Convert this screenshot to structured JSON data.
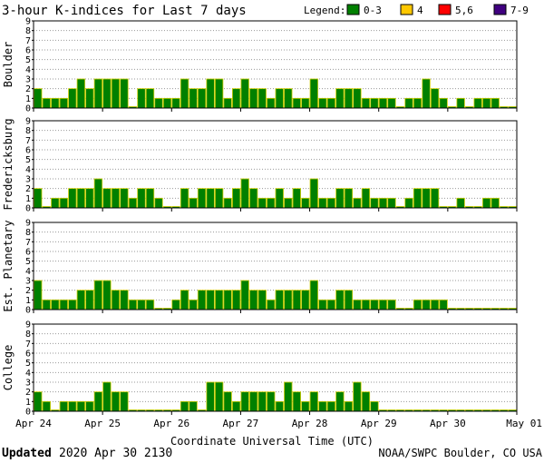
{
  "chart_data": {
    "type": "bar",
    "title": "3-hour K-indices for Last 7 days",
    "legend": {
      "label": "Legend:",
      "position": "top-right",
      "items": [
        {
          "label": "0-3",
          "color": "#008000"
        },
        {
          "label": "4",
          "color": "#FFC800"
        },
        {
          "label": "5,6",
          "color": "#FF0000"
        },
        {
          "label": "7-9",
          "color": "#400080"
        }
      ]
    },
    "xlabel": "Coordinate Universal Time (UTC)",
    "x_ticks": [
      "Apr 24",
      "Apr 25",
      "Apr 26",
      "Apr 27",
      "Apr 28",
      "Apr 29",
      "Apr 30",
      "May 01"
    ],
    "y_ticks": [
      "0",
      "1",
      "2",
      "3",
      "4",
      "5",
      "6",
      "7",
      "8",
      "9"
    ],
    "ylim": [
      0,
      9
    ],
    "intervals_per_day": 8,
    "grid": "horizontal dotted",
    "panels": [
      {
        "name": "Boulder",
        "values": [
          2,
          1,
          1,
          1,
          2,
          3,
          2,
          3,
          3,
          3,
          3,
          0,
          2,
          2,
          1,
          1,
          1,
          3,
          2,
          2,
          3,
          3,
          1,
          2,
          3,
          2,
          2,
          1,
          2,
          2,
          1,
          1,
          3,
          1,
          1,
          2,
          2,
          2,
          1,
          1,
          1,
          1,
          0,
          1,
          1,
          3,
          2,
          1,
          0,
          1,
          0,
          1,
          1,
          1,
          0,
          0
        ]
      },
      {
        "name": "Fredericksburg",
        "values": [
          2,
          0,
          1,
          1,
          2,
          2,
          2,
          3,
          2,
          2,
          2,
          1,
          2,
          2,
          1,
          0,
          0,
          2,
          1,
          2,
          2,
          2,
          1,
          2,
          3,
          2,
          1,
          1,
          2,
          1,
          2,
          1,
          3,
          1,
          1,
          2,
          2,
          1,
          2,
          1,
          1,
          1,
          0,
          1,
          2,
          2,
          2,
          0,
          0,
          1,
          0,
          0,
          1,
          1,
          0,
          0
        ]
      },
      {
        "name": "Est. Planetary",
        "values": [
          3,
          1,
          1,
          1,
          1,
          2,
          2,
          3,
          3,
          2,
          2,
          1,
          1,
          1,
          0,
          0,
          1,
          2,
          1,
          2,
          2,
          2,
          2,
          2,
          3,
          2,
          2,
          1,
          2,
          2,
          2,
          2,
          3,
          1,
          1,
          2,
          2,
          1,
          1,
          1,
          1,
          1,
          0,
          0,
          1,
          1,
          1,
          1,
          0,
          0,
          0,
          0,
          0,
          0,
          0,
          0
        ]
      },
      {
        "name": "College",
        "values": [
          2,
          1,
          0,
          1,
          1,
          1,
          1,
          2,
          3,
          2,
          2,
          0,
          0,
          0,
          0,
          0,
          0,
          1,
          1,
          0,
          3,
          3,
          2,
          1,
          2,
          2,
          2,
          2,
          1,
          3,
          2,
          1,
          2,
          1,
          1,
          2,
          1,
          3,
          2,
          1,
          0,
          0,
          0,
          0,
          0,
          0,
          0,
          0,
          0,
          0,
          0,
          0,
          0,
          0,
          0,
          0
        ]
      }
    ],
    "footer": {
      "updated_label": "Updated",
      "updated_value": "2020 Apr 30 2130",
      "credit": "NOAA/SWPC Boulder, CO USA"
    }
  }
}
